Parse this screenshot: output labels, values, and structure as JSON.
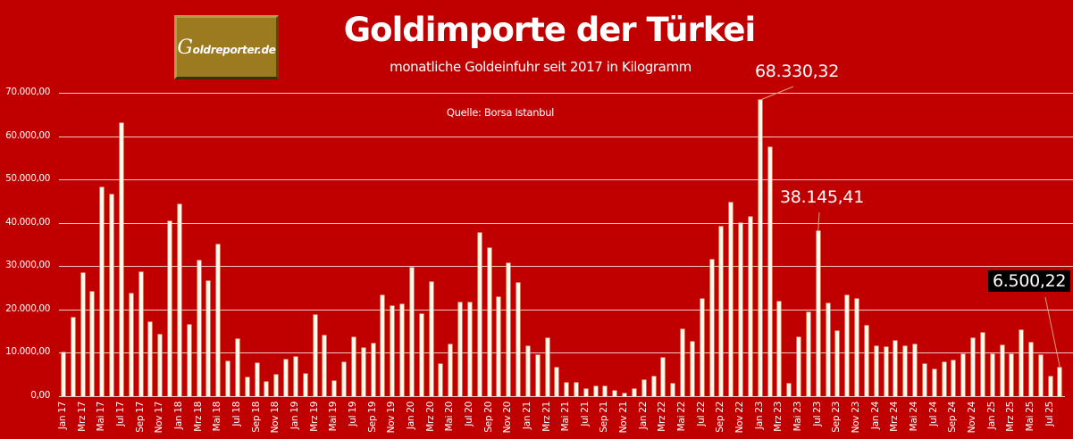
{
  "header": {
    "logo_text": "Goldreporter.de",
    "logo_initial": "G",
    "logo_rest": "oldreporter.de",
    "title": "Goldimporte der Türkei",
    "subtitle": "monatliche Goldeinfuhr seit 2017 in Kilogramm",
    "source": "Quelle: Borsa Istanbul"
  },
  "colors": {
    "background": "#C00000",
    "bar_fill": "#FFF8EC",
    "bar_border": "#F2B080",
    "gridline": "#F0C8C0",
    "logo": "#9C7A1F",
    "highlight_box": "#000000"
  },
  "y_axis": {
    "ticks": [
      "70.000,00",
      "60.000,00",
      "50.000,00",
      "40.000,00",
      "30.000,00",
      "20.000,00",
      "10.000,00",
      "0,00"
    ]
  },
  "annotations": [
    {
      "label": "68.330,32",
      "month": "Jan 23",
      "boxed": false
    },
    {
      "label": "38.145,41",
      "month": "Jul 23",
      "boxed": false
    },
    {
      "label": "6.500,22",
      "month": "Aug 25",
      "boxed": true
    }
  ],
  "chart_data": {
    "type": "bar",
    "title": "Goldimporte der Türkei",
    "subtitle": "monatliche Goldeinfuhr seit 2017 in Kilogramm",
    "source": "Quelle: Borsa Istanbul",
    "xlabel": "",
    "ylabel": "Kilogramm",
    "ylim": [
      0,
      70000
    ],
    "grid": true,
    "legend": null,
    "categories": [
      "Jan 17",
      "Feb 17",
      "Mrz 17",
      "Apr 17",
      "Mai 17",
      "Jun 17",
      "Jul 17",
      "Aug 17",
      "Sep 17",
      "Okt 17",
      "Nov 17",
      "Dez 17",
      "Jan 18",
      "Feb 18",
      "Mrz 18",
      "Apr 18",
      "Mai 18",
      "Jun 18",
      "Jul 18",
      "Aug 18",
      "Sep 18",
      "Okt 18",
      "Nov 18",
      "Dez 18",
      "Jan 19",
      "Feb 19",
      "Mrz 19",
      "Apr 19",
      "Mai 19",
      "Jun 19",
      "Jul 19",
      "Aug 19",
      "Sep 19",
      "Okt 19",
      "Nov 19",
      "Dez 19",
      "Jan 20",
      "Feb 20",
      "Mrz 20",
      "Apr 20",
      "Mai 20",
      "Jun 20",
      "Jul 20",
      "Aug 20",
      "Sep 20",
      "Okt 20",
      "Nov 20",
      "Dez 20",
      "Jan 21",
      "Feb 21",
      "Mrz 21",
      "Apr 21",
      "Mai 21",
      "Jun 21",
      "Jul 21",
      "Aug 21",
      "Sep 21",
      "Okt 21",
      "Nov 21",
      "Dez 21",
      "Jan 22",
      "Feb 22",
      "Mrz 22",
      "Apr 22",
      "Mai 22",
      "Jun 22",
      "Jul 22",
      "Aug 22",
      "Sep 22",
      "Okt 22",
      "Nov 22",
      "Dez 22",
      "Jan 23",
      "Feb 23",
      "Mrz 23",
      "Apr 23",
      "Mai 23",
      "Jun 23",
      "Jul 23",
      "Aug 23",
      "Sep 23",
      "Okt 23",
      "Nov 23",
      "Dez 23",
      "Jan 24",
      "Feb 24",
      "Mrz 24",
      "Apr 24",
      "Mai 24",
      "Jun 24",
      "Jul 24",
      "Aug 24",
      "Sep 24",
      "Okt 24",
      "Nov 24",
      "Dez 24",
      "Jan 25",
      "Feb 25",
      "Mrz 25",
      "Apr 25",
      "Mai 25",
      "Jun 25",
      "Jul 25",
      "Aug 25"
    ],
    "values": [
      10000,
      18100,
      28400,
      24100,
      48200,
      46500,
      63000,
      23700,
      28600,
      17100,
      14200,
      40400,
      44200,
      16500,
      31300,
      26600,
      35000,
      8000,
      13200,
      4300,
      7600,
      3300,
      4900,
      8400,
      9000,
      5100,
      18800,
      14000,
      3500,
      7800,
      13500,
      11200,
      12100,
      23200,
      20700,
      21200,
      29600,
      18900,
      26300,
      7400,
      11900,
      21600,
      21600,
      37600,
      34200,
      22800,
      30600,
      26100,
      11500,
      9500,
      13400,
      6600,
      3100,
      3100,
      1600,
      2200,
      2200,
      1200,
      600,
      1600,
      3700,
      4500,
      8900,
      2900,
      15400,
      12500,
      22400,
      31500,
      39100,
      44700,
      40000,
      41400,
      68330.32,
      57400,
      21800,
      2900,
      13600,
      19400,
      38145.41,
      21400,
      15000,
      23200,
      22400,
      16300,
      11500,
      11300,
      12700,
      11500,
      11900,
      7400,
      6200,
      7800,
      8200,
      9600,
      13400,
      14600,
      9600,
      11700,
      9600,
      15200,
      12400,
      9400,
      4500,
      6500.22
    ],
    "x_tick_labels_shown": [
      "Jan 17",
      "Mrz 17",
      "Mai 17",
      "Jul 17",
      "Sep 17",
      "Nov 17",
      "Jan 18",
      "Mrz 18",
      "Mai 18",
      "Jul 18",
      "Sep 18",
      "Nov 18",
      "Jan 19",
      "Mrz 19",
      "Mai 19",
      "Jul 19",
      "Sep 19",
      "Nov 19",
      "Jan 20",
      "Mrz 20",
      "Mai 20",
      "Jul 20",
      "Sep 20",
      "Nov 20",
      "Jan 21",
      "Mrz 21",
      "Mai 21",
      "Jul 21",
      "Sep 21",
      "Nov 21",
      "Jan 22",
      "Mrz 22",
      "Mai 22",
      "Jul 22",
      "Sep 22",
      "Nov 22",
      "Jan 23",
      "Mrz 23",
      "Mai 23",
      "Jul 23",
      "Sep 23",
      "Nov 23",
      "Jan 24",
      "Mrz 24",
      "Mai 24",
      "Jul 24",
      "Sep 24",
      "Nov 24",
      "Jan 25",
      "Mrz 25",
      "Mai 25",
      "Jul 25"
    ],
    "annotations": [
      {
        "category": "Jan 23",
        "text": "68.330,32"
      },
      {
        "category": "Jul 23",
        "text": "38.145,41"
      },
      {
        "category": "Aug 25",
        "text": "6.500,22"
      }
    ]
  }
}
